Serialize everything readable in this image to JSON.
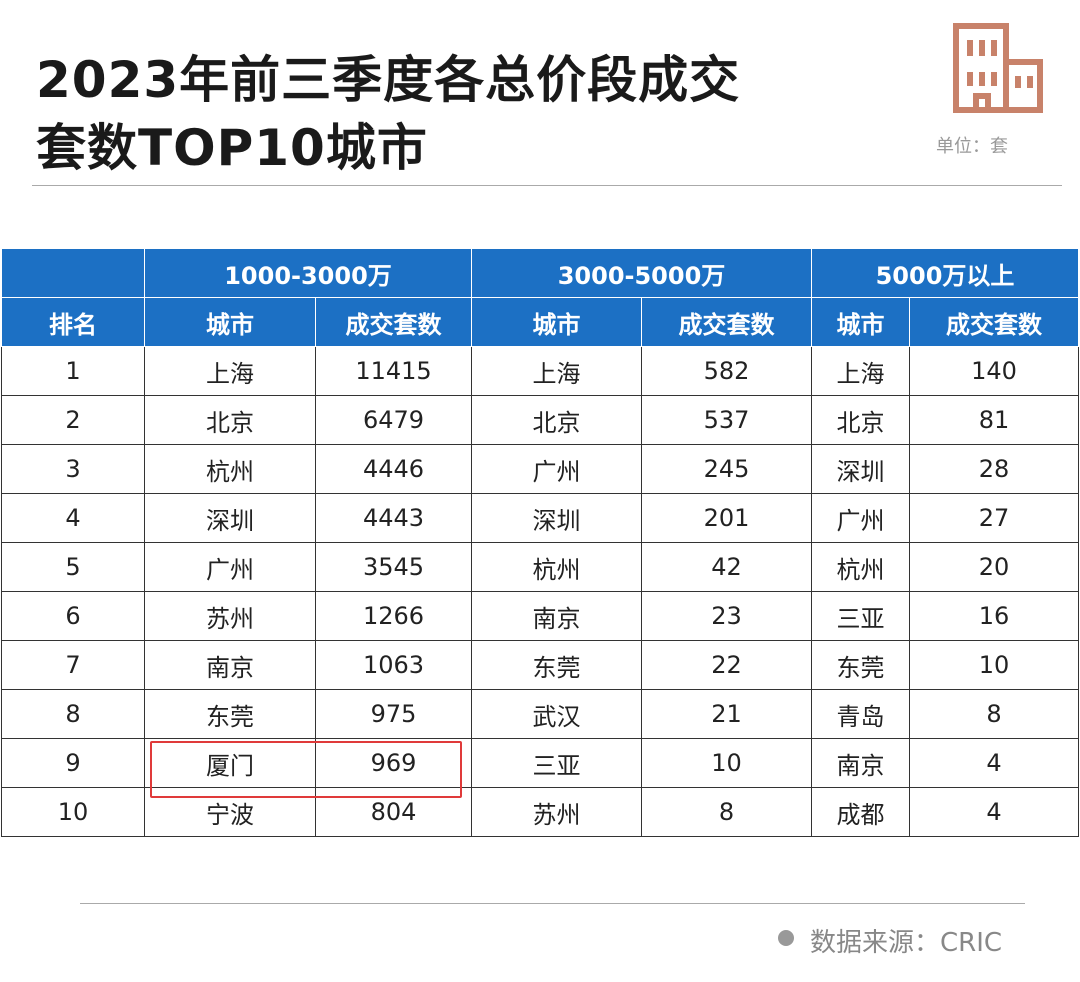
{
  "header": {
    "title": [
      "2023年前三季度各总价段成交",
      "套数TOP10城市"
    ],
    "unit": "单位：套"
  },
  "table": {
    "groups": [
      "1000-3000万",
      "3000-5000万",
      "5000万以上"
    ],
    "columns": [
      "排名",
      "城市",
      "成交套数",
      "城市",
      "成交套数",
      "城市",
      "成交套数"
    ],
    "rows": [
      [
        1,
        "上海",
        11415,
        "上海",
        582,
        "上海",
        140
      ],
      [
        2,
        "北京",
        6479,
        "北京",
        537,
        "北京",
        81
      ],
      [
        3,
        "杭州",
        4446,
        "广州",
        245,
        "深圳",
        28
      ],
      [
        4,
        "深圳",
        4443,
        "深圳",
        201,
        "广州",
        27
      ],
      [
        5,
        "广州",
        3545,
        "杭州",
        42,
        "杭州",
        20
      ],
      [
        6,
        "苏州",
        1266,
        "南京",
        23,
        "三亚",
        16
      ],
      [
        7,
        "南京",
        1063,
        "东莞",
        22,
        "东莞",
        10
      ],
      [
        8,
        "东莞",
        975,
        "武汉",
        21,
        "青岛",
        8
      ],
      [
        9,
        "厦门",
        969,
        "三亚",
        10,
        "南京",
        4
      ],
      [
        10,
        "宁波",
        804,
        "苏州",
        8,
        "成都",
        4
      ]
    ]
  },
  "footer": {
    "source": "数据来源：CRIC"
  }
}
